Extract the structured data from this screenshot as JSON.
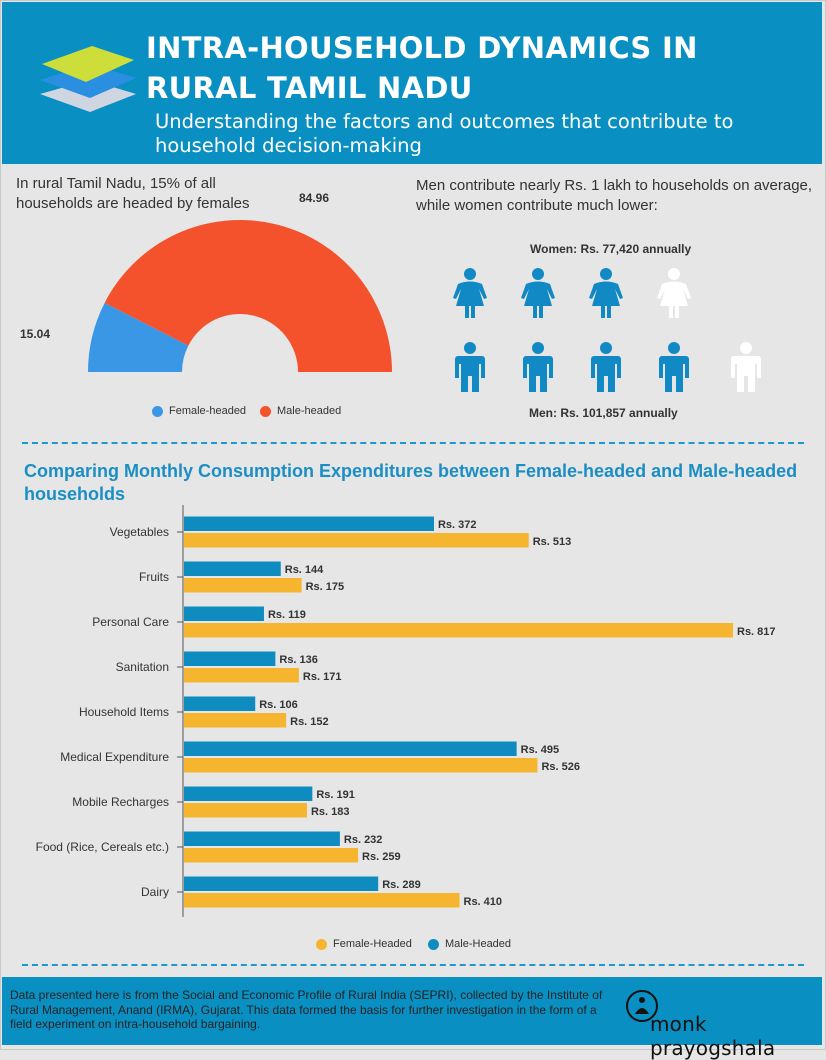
{
  "header": {
    "title": "INTRA-HOUSEHOLD DYNAMICS IN RURAL TAMIL NADU",
    "subtitle": "Understanding the factors and outcomes that contribute to household decision-making"
  },
  "headship": {
    "text": "In rural Tamil Nadu, 15% of all households are headed by females",
    "female_label": "15.04",
    "male_label": "84.96"
  },
  "income": {
    "text": "Men contribute nearly Rs. 1 lakh to households on average, while women contribute much lower:",
    "women_label": "Women: Rs. 77,420 annually",
    "men_label": "Men: Rs. 101,857 annually",
    "women_icon": "woman-icon",
    "men_icon": "man-icon"
  },
  "expenditure": {
    "title": "Comparing Monthly Consumption Expenditures between Female-headed and Male-headed households"
  },
  "footer": {
    "text": "Data presented here is from the Social and Economic Profile of Rural India (SEPRI), collected by the Institute of Rural Management, Anand (IRMA), Gujarat. This data formed the basis for further investigation in the form of a field experiment on intra-household bargaining.",
    "brand": "monk prayogshala",
    "brand_icon": "monk-logo-icon"
  },
  "colors": {
    "header_blue": "#0a8fc2",
    "female_blue": "#3a97e6",
    "male_red": "#f4522d",
    "person_blue": "#1189c4",
    "bar_male": "#0f8cbf",
    "bar_female": "#f6b52e"
  },
  "chart_data": [
    {
      "type": "pie",
      "variant": "half-donut",
      "labels": [
        "Female-headed",
        "Male-headed"
      ],
      "values": [
        15.04,
        84.96
      ],
      "colors": [
        "#3a97e6",
        "#f4522d"
      ],
      "legend": [
        "Female-headed",
        "Male-headed"
      ],
      "legend_position": "bottom"
    },
    {
      "type": "pictogram",
      "series": [
        {
          "name": "Women: Rs. 77,420 annually",
          "value": 77420,
          "filled": 3,
          "total": 4
        },
        {
          "name": "Men: Rs. 101,857 annually",
          "value": 101857,
          "filled": 4,
          "total": 5
        }
      ]
    },
    {
      "type": "bar",
      "orientation": "horizontal",
      "categories": [
        "Vegetables",
        "Fruits",
        "Personal Care",
        "Sanitation",
        "Household Items",
        "Medical Expenditure",
        "Mobile Recharges",
        "Food (Rice, Cereals etc.)",
        "Dairy"
      ],
      "series": [
        {
          "name": "Male-Headed",
          "color": "#0f8cbf",
          "values": [
            372,
            144,
            119,
            136,
            106,
            495,
            191,
            232,
            289
          ],
          "labels": [
            "Rs. 372",
            "Rs. 144",
            "Rs. 119",
            "Rs. 136",
            "Rs. 106",
            "Rs. 495",
            "Rs. 191",
            "Rs. 232",
            "Rs. 289"
          ]
        },
        {
          "name": "Female-Headed",
          "color": "#f6b52e",
          "values": [
            513,
            175,
            817,
            171,
            152,
            526,
            183,
            259,
            410
          ],
          "labels": [
            "Rs. 513",
            "Rs. 175",
            "Rs. 817",
            "Rs. 171",
            "Rs. 152",
            "Rs. 526",
            "Rs. 183",
            "Rs. 259",
            "Rs. 410"
          ]
        }
      ],
      "legend": [
        "Female-Headed",
        "Male-Headed"
      ],
      "legend_position": "bottom",
      "xlim": [
        0,
        817
      ],
      "grid": false
    }
  ]
}
